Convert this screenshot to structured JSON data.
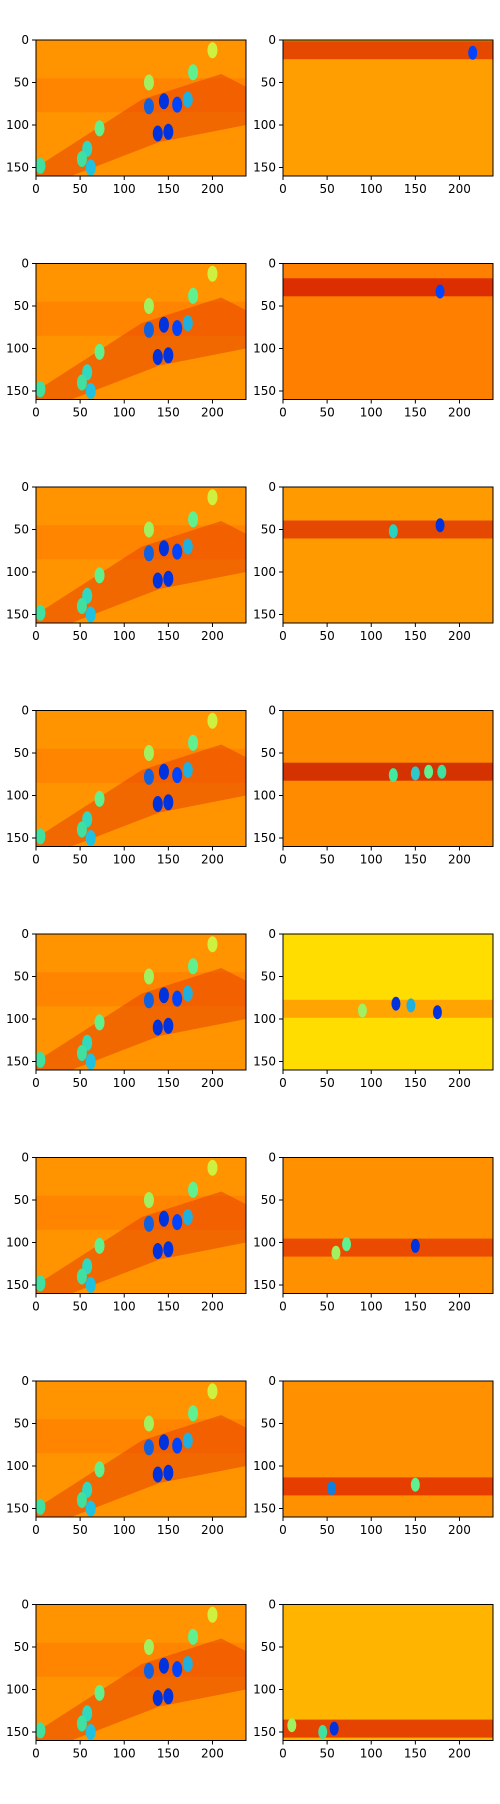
{
  "figure": {
    "rows": 8,
    "cols": 2,
    "colormap": "jet"
  },
  "chart_data": [
    {
      "type": "heatmap",
      "xlim": [
        0,
        238
      ],
      "ylim": [
        160,
        0
      ],
      "xticks": [
        0,
        50,
        100,
        150,
        200
      ],
      "yticks": [
        0,
        50,
        100,
        150
      ],
      "description_rows": "0-160",
      "left_panel": "full-scene",
      "right_panel": "row-band",
      "background_color": "#ff9e00",
      "band_y_center": 12,
      "band_color": "#e03a00",
      "hotspots": [
        [
          215,
          15,
          "#0044ff"
        ]
      ]
    },
    {
      "type": "heatmap",
      "xlim": [
        0,
        238
      ],
      "ylim": [
        160,
        0
      ],
      "xticks": [
        0,
        50,
        100,
        150,
        200
      ],
      "yticks": [
        0,
        50,
        100,
        150
      ],
      "background_color": "#ff8000",
      "band_y_center": 28,
      "band_color": "#d62000",
      "hotspots": [
        [
          178,
          33,
          "#0044ff"
        ]
      ]
    },
    {
      "type": "heatmap",
      "xlim": [
        0,
        238
      ],
      "ylim": [
        160,
        0
      ],
      "xticks": [
        0,
        50,
        100,
        150,
        200
      ],
      "yticks": [
        0,
        50,
        100,
        150
      ],
      "background_color": "#ff9a00",
      "band_y_center": 50,
      "band_color": "#e03a00",
      "hotspots": [
        [
          125,
          52,
          "#25d4c0"
        ],
        [
          178,
          45,
          "#0033dd"
        ]
      ]
    },
    {
      "type": "heatmap",
      "xlim": [
        0,
        238
      ],
      "ylim": [
        160,
        0
      ],
      "xticks": [
        0,
        50,
        100,
        150,
        200
      ],
      "yticks": [
        0,
        50,
        100,
        150
      ],
      "background_color": "#ff8c00",
      "band_y_center": 72,
      "band_color": "#cc2200",
      "hotspots": [
        [
          125,
          76,
          "#40e8a0"
        ],
        [
          150,
          74,
          "#30c8c8"
        ],
        [
          165,
          72,
          "#60f090"
        ],
        [
          180,
          72,
          "#40e0a0"
        ]
      ]
    },
    {
      "type": "heatmap",
      "xlim": [
        0,
        238
      ],
      "ylim": [
        160,
        0
      ],
      "xticks": [
        0,
        50,
        100,
        150,
        200
      ],
      "yticks": [
        0,
        50,
        100,
        150
      ],
      "background_color": "#ffdd00",
      "band_y_center": 88,
      "band_color": "#ff9a00",
      "hotspots": [
        [
          128,
          82,
          "#0033dd"
        ],
        [
          145,
          84,
          "#20b0e0"
        ],
        [
          175,
          92,
          "#0033dd"
        ],
        [
          90,
          90,
          "#a0f060"
        ]
      ]
    },
    {
      "type": "heatmap",
      "xlim": [
        0,
        238
      ],
      "ylim": [
        160,
        0
      ],
      "xticks": [
        0,
        50,
        100,
        150,
        200
      ],
      "yticks": [
        0,
        50,
        100,
        150
      ],
      "background_color": "#ff9000",
      "band_y_center": 106,
      "band_color": "#e84000",
      "hotspots": [
        [
          150,
          104,
          "#0033dd"
        ],
        [
          72,
          102,
          "#60f090"
        ],
        [
          60,
          112,
          "#a0f060"
        ]
      ]
    },
    {
      "type": "heatmap",
      "xlim": [
        0,
        238
      ],
      "ylim": [
        160,
        0
      ],
      "xticks": [
        0,
        50,
        100,
        150,
        200
      ],
      "yticks": [
        0,
        50,
        100,
        150
      ],
      "background_color": "#ff9000",
      "band_y_center": 124,
      "band_color": "#e03000",
      "hotspots": [
        [
          55,
          126,
          "#1080e0"
        ],
        [
          150,
          122,
          "#60f090"
        ]
      ]
    },
    {
      "type": "heatmap",
      "xlim": [
        0,
        238
      ],
      "ylim": [
        160,
        0
      ],
      "xticks": [
        0,
        50,
        100,
        150,
        200
      ],
      "yticks": [
        0,
        50,
        100,
        150
      ],
      "background_color": "#ffb400",
      "band_y_center": 146,
      "band_color": "#e03000",
      "hotspots": [
        [
          58,
          146,
          "#0033dd"
        ],
        [
          10,
          142,
          "#a0f060"
        ],
        [
          45,
          150,
          "#40e0a0"
        ]
      ]
    }
  ]
}
